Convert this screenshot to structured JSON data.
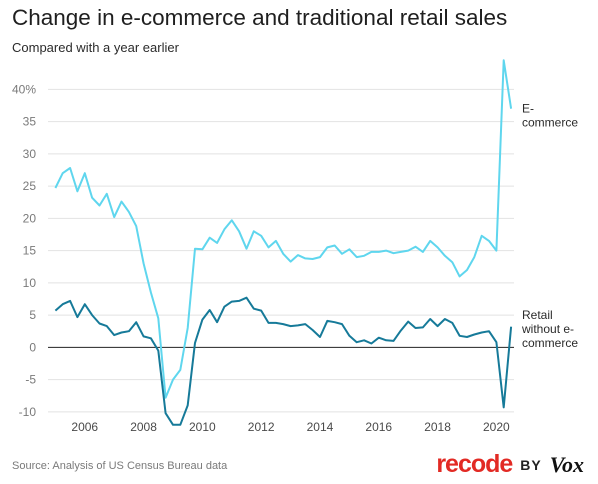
{
  "header": {
    "title": "Change in e-commerce and traditional retail sales",
    "subtitle": "Compared with a year earlier"
  },
  "footer": {
    "source": "Source: Analysis of US Census Bureau data",
    "brand_recode": "recode",
    "brand_by": "BY",
    "brand_vox": "Vox"
  },
  "colors": {
    "ecommerce": "#5fd6ee",
    "retail": "#167a99",
    "gridline": "#e2e2e2",
    "zero_line": "#222222"
  },
  "chart_data": {
    "type": "line",
    "title": "Change in e-commerce and traditional retail sales",
    "subtitle": "Compared with a year earlier",
    "xlabel": "",
    "ylabel": "",
    "xlim": [
      2004.75,
      2020.6
    ],
    "ylim": [
      -12.5,
      43
    ],
    "grid": true,
    "legend": "direct labels at right",
    "x_ticks": [
      2006,
      2008,
      2010,
      2012,
      2014,
      2016,
      2018,
      2020
    ],
    "x_tick_labels": [
      "2006",
      "2008",
      "2010",
      "2012",
      "2014",
      "2016",
      "2018",
      "2020"
    ],
    "y_ticks": [
      -10,
      -5,
      0,
      5,
      10,
      15,
      20,
      25,
      30,
      35,
      40
    ],
    "y_tick_labels": [
      "-10",
      "-5",
      "0",
      "5",
      "10",
      "15",
      "20",
      "25",
      "30",
      "35",
      "40%"
    ],
    "x": [
      2005.0,
      2005.25,
      2005.5,
      2005.75,
      2006.0,
      2006.25,
      2006.5,
      2006.75,
      2007.0,
      2007.25,
      2007.5,
      2007.75,
      2008.0,
      2008.25,
      2008.5,
      2008.75,
      2009.0,
      2009.25,
      2009.5,
      2009.75,
      2010.0,
      2010.25,
      2010.5,
      2010.75,
      2011.0,
      2011.25,
      2011.5,
      2011.75,
      2012.0,
      2012.25,
      2012.5,
      2012.75,
      2013.0,
      2013.25,
      2013.5,
      2013.75,
      2014.0,
      2014.25,
      2014.5,
      2014.75,
      2015.0,
      2015.25,
      2015.5,
      2015.75,
      2016.0,
      2016.25,
      2016.5,
      2016.75,
      2017.0,
      2017.25,
      2017.5,
      2017.75,
      2018.0,
      2018.25,
      2018.5,
      2018.75,
      2019.0,
      2019.25,
      2019.5,
      2019.75,
      2020.0,
      2020.25,
      2020.5
    ],
    "series": [
      {
        "name": "E-commerce",
        "label_lines": [
          "E-",
          "commerce"
        ],
        "values": [
          24.7,
          27.0,
          27.8,
          24.2,
          27.0,
          23.2,
          22.0,
          23.8,
          20.2,
          22.6,
          21.0,
          18.8,
          13.0,
          8.5,
          4.5,
          -7.8,
          -5.0,
          -3.5,
          3.0,
          15.3,
          15.2,
          17.0,
          16.2,
          18.3,
          19.7,
          18.0,
          15.3,
          18.0,
          17.3,
          15.5,
          16.5,
          14.5,
          13.3,
          14.3,
          13.8,
          13.7,
          14.0,
          15.5,
          15.8,
          14.5,
          15.2,
          14.0,
          14.2,
          14.8,
          14.8,
          15.0,
          14.6,
          14.8,
          15.0,
          15.6,
          14.8,
          16.5,
          15.5,
          14.2,
          13.2,
          11.0,
          12.0,
          14.0,
          17.3,
          16.5,
          15.0,
          44.5,
          37.0
        ]
      },
      {
        "name": "Retail without e-commerce",
        "label_lines": [
          "Retail",
          "without e-",
          "commerce"
        ],
        "values": [
          5.7,
          6.7,
          7.2,
          4.7,
          6.7,
          5.0,
          3.7,
          3.3,
          1.9,
          2.3,
          2.5,
          3.9,
          1.7,
          1.4,
          -0.5,
          -10.2,
          -12.0,
          -12.0,
          -9.0,
          0.7,
          4.3,
          5.8,
          3.9,
          6.3,
          7.1,
          7.2,
          7.7,
          6.0,
          5.7,
          3.8,
          3.8,
          3.6,
          3.3,
          3.4,
          3.6,
          2.7,
          1.6,
          4.1,
          3.9,
          3.6,
          1.8,
          0.8,
          1.1,
          0.6,
          1.5,
          1.1,
          1.0,
          2.6,
          4.0,
          3.0,
          3.1,
          4.4,
          3.3,
          4.4,
          3.8,
          1.8,
          1.6,
          2.0,
          2.3,
          2.5,
          0.8,
          -9.3,
          3.2
        ]
      }
    ]
  }
}
